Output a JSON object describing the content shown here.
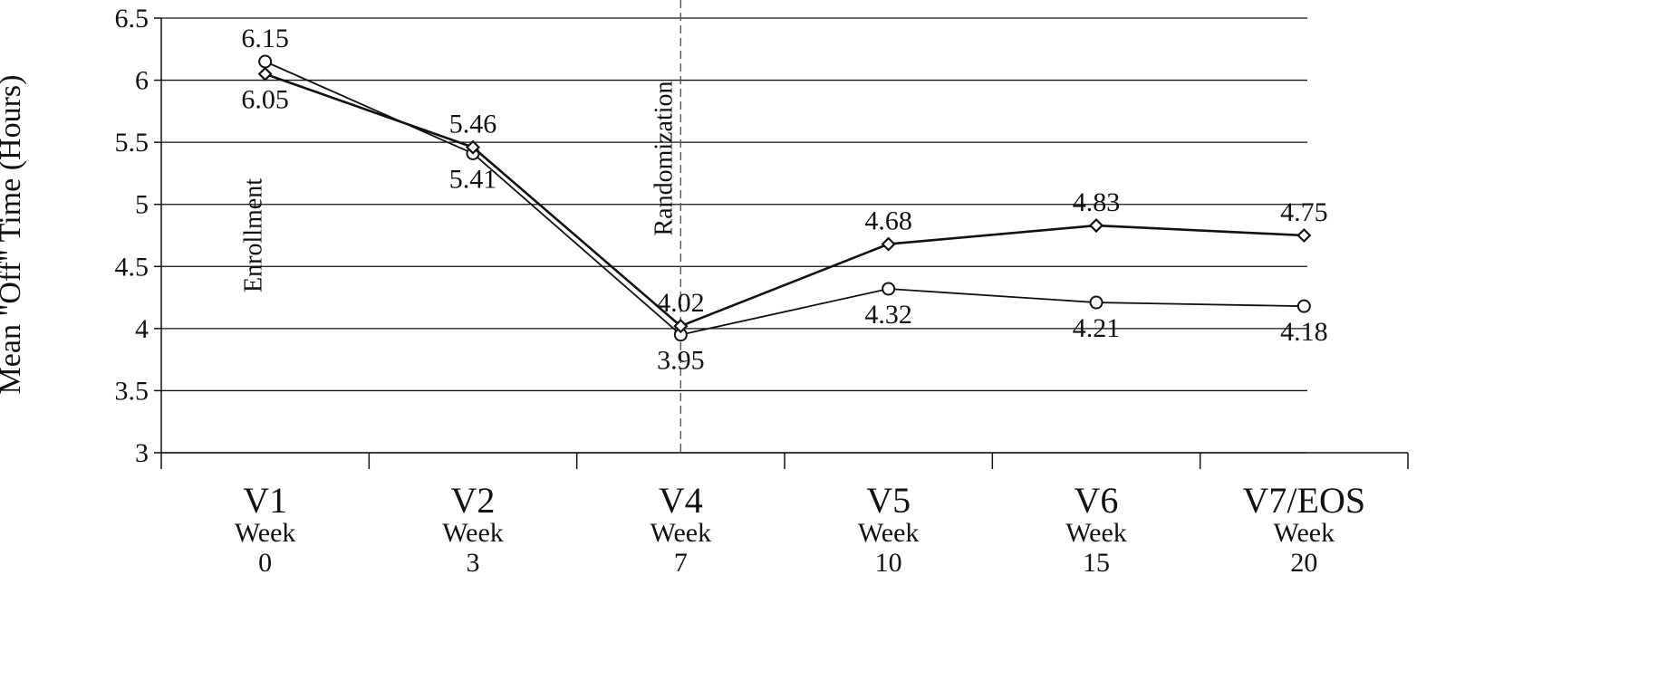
{
  "chart_data": {
    "type": "line",
    "ylabel": "Mean \"Off\" Time (Hours)",
    "ylim": [
      3,
      6.5
    ],
    "yticks": [
      "3",
      "3.5",
      "4",
      "4.5",
      "5",
      "5.5",
      "6",
      "6.5"
    ],
    "grid": true,
    "categories": [
      {
        "visit": "V1",
        "week_label": "Week",
        "week": "0"
      },
      {
        "visit": "V2",
        "week_label": "Week",
        "week": "3"
      },
      {
        "visit": "V4",
        "week_label": "Week",
        "week": "7"
      },
      {
        "visit": "V5",
        "week_label": "Week",
        "week": "10"
      },
      {
        "visit": "V6",
        "week_label": "Week",
        "week": "15"
      },
      {
        "visit": "V7/EOS",
        "week_label": "Week",
        "week": "20"
      }
    ],
    "series": [
      {
        "marker": "circle",
        "values": [
          6.15,
          5.41,
          3.95,
          4.32,
          4.21,
          4.18
        ],
        "labels": [
          "6.15",
          "5.41",
          "3.95",
          "4.32",
          "4.21",
          "4.18"
        ]
      },
      {
        "marker": "diamond",
        "values": [
          6.05,
          5.46,
          4.02,
          4.68,
          4.83,
          4.75
        ],
        "labels": [
          "6.05",
          "5.46",
          "4.02",
          "4.68",
          "4.83",
          "4.75"
        ]
      }
    ],
    "annotations": {
      "enrollment": "Enrollment",
      "randomization": "Randomization"
    }
  }
}
